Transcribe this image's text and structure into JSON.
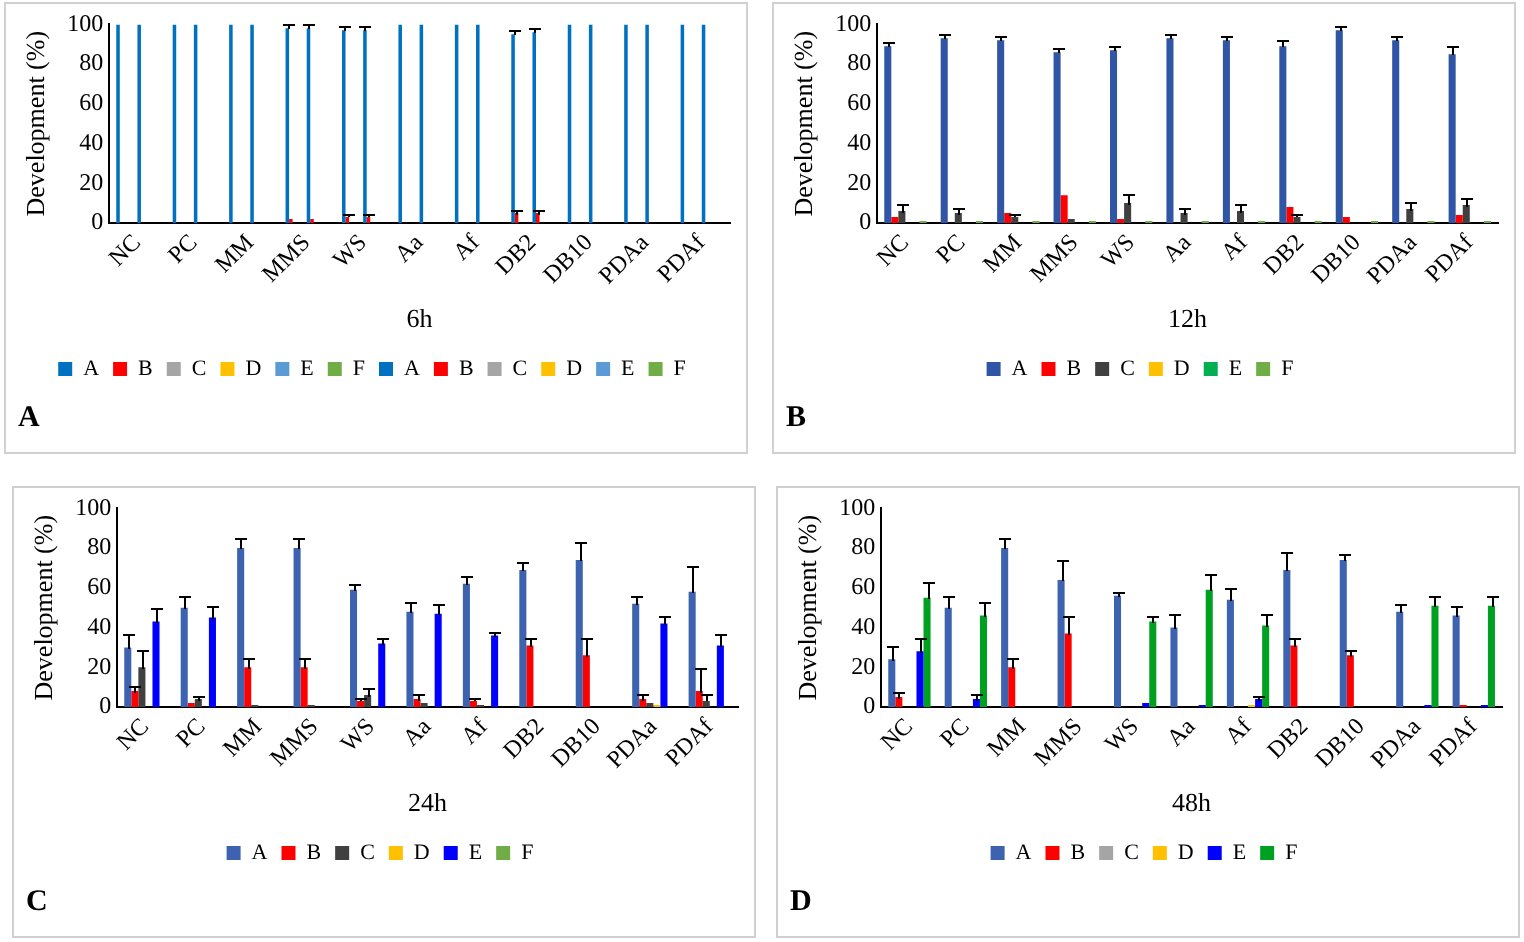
{
  "chart_data": [
    {
      "type": "bar",
      "xlabel": "6h",
      "ylabel": "Development (%)",
      "annotations": [
        "A"
      ],
      "categories": [
        "NC",
        "PC",
        "MM",
        "MMS",
        "WS",
        "Aa",
        "Af",
        "DB2",
        "DB10",
        "PDAa",
        "PDAf"
      ],
      "ylim": [
        0,
        100
      ],
      "yticks": [
        0,
        20,
        40,
        60,
        80,
        100
      ],
      "grid": false,
      "legend": "bottom",
      "series": [
        {
          "name": "A",
          "color": "#0070c0",
          "values": [
            100,
            100,
            100,
            98,
            97,
            100,
            100,
            95,
            100,
            100,
            100
          ],
          "errors": [
            null,
            null,
            null,
            [
              98,
              100
            ],
            [
              97,
              99
            ],
            null,
            null,
            [
              95,
              97
            ],
            null,
            null,
            null
          ]
        },
        {
          "name": "B",
          "color": "#ff0000",
          "values": [
            0,
            0,
            0,
            2,
            3,
            0,
            0,
            5,
            0,
            0,
            0
          ],
          "errors": [
            null,
            null,
            null,
            null,
            [
              3,
              5
            ],
            null,
            null,
            [
              5,
              7
            ],
            null,
            null,
            null
          ]
        },
        {
          "name": "C",
          "color": "#a5a5a5",
          "values": [
            0,
            0,
            0,
            0,
            0,
            0,
            0,
            0,
            0,
            0,
            0
          ]
        },
        {
          "name": "D",
          "color": "#ffc000",
          "values": [
            0,
            0,
            0,
            0,
            0,
            0,
            0,
            0,
            0,
            0,
            0
          ]
        },
        {
          "name": "E",
          "color": "#5b9bd5",
          "values": [
            0,
            0,
            0,
            0,
            0,
            0,
            0,
            0,
            0,
            0,
            0
          ]
        },
        {
          "name": "F",
          "color": "#70ad47",
          "values": [
            0,
            0,
            0,
            0,
            0,
            0,
            0,
            0,
            0,
            0,
            0
          ]
        },
        {
          "name": "A",
          "color": "#0070c0",
          "values": [
            100,
            100,
            100,
            98,
            97,
            100,
            100,
            96,
            100,
            100,
            100
          ],
          "errors": [
            null,
            null,
            null,
            [
              98,
              100
            ],
            [
              97,
              99
            ],
            null,
            null,
            [
              96,
              98
            ],
            null,
            null,
            null
          ]
        },
        {
          "name": "B",
          "color": "#ff0000",
          "values": [
            0,
            0,
            0,
            2,
            3,
            0,
            0,
            5,
            0,
            0,
            0
          ],
          "errors": [
            null,
            null,
            null,
            null,
            [
              3,
              5
            ],
            null,
            null,
            [
              5,
              7
            ],
            null,
            null,
            null
          ]
        },
        {
          "name": "C",
          "color": "#a5a5a5",
          "values": [
            0,
            0,
            0,
            0,
            0,
            0,
            0,
            0,
            0,
            0,
            0
          ]
        },
        {
          "name": "D",
          "color": "#ffc000",
          "values": [
            0,
            0,
            0,
            0,
            0,
            0,
            0,
            0,
            0,
            0,
            0
          ]
        },
        {
          "name": "E",
          "color": "#5b9bd5",
          "values": [
            0,
            0,
            0,
            0,
            0,
            0,
            0,
            0,
            0,
            0,
            0
          ]
        },
        {
          "name": "F",
          "color": "#70ad47",
          "values": [
            0,
            0,
            0,
            0,
            0,
            0,
            0,
            0,
            0,
            0,
            0
          ]
        }
      ]
    },
    {
      "type": "bar",
      "xlabel": "12h",
      "ylabel": "Development (%)",
      "annotations": [
        "B"
      ],
      "categories": [
        "NC",
        "PC",
        "MM",
        "MMS",
        "WS",
        "Aa",
        "Af",
        "DB2",
        "DB10",
        "PDAa",
        "PDAf"
      ],
      "ylim": [
        0,
        100
      ],
      "yticks": [
        0,
        20,
        40,
        60,
        80,
        100
      ],
      "grid": false,
      "legend": "bottom",
      "series": [
        {
          "name": "A",
          "color": "#2f55a4",
          "values": [
            89,
            93,
            92,
            86,
            87,
            93,
            92,
            89,
            97,
            92,
            85
          ],
          "errors": [
            [
              89,
              91
            ],
            [
              93,
              95
            ],
            [
              92,
              94
            ],
            [
              86,
              88
            ],
            [
              87,
              89
            ],
            [
              93,
              95
            ],
            [
              92,
              94
            ],
            [
              89,
              92
            ],
            [
              97,
              99
            ],
            [
              92,
              94
            ],
            [
              85,
              89
            ]
          ]
        },
        {
          "name": "B",
          "color": "#ff0000",
          "values": [
            3,
            0,
            5,
            14,
            2,
            0,
            0,
            8,
            3,
            0,
            4
          ]
        },
        {
          "name": "C",
          "color": "#404040",
          "values": [
            6,
            5,
            3,
            2,
            10,
            5,
            6,
            3,
            0,
            7,
            9
          ],
          "errors": [
            [
              6,
              10
            ],
            [
              5,
              8
            ],
            [
              3,
              5
            ],
            null,
            [
              10,
              15
            ],
            [
              5,
              8
            ],
            [
              6,
              10
            ],
            [
              3,
              5
            ],
            null,
            [
              7,
              11
            ],
            [
              9,
              13
            ]
          ]
        },
        {
          "name": "D",
          "color": "#ffc000",
          "values": [
            0,
            0,
            0,
            0,
            0,
            0,
            0,
            0,
            0,
            0,
            0
          ]
        },
        {
          "name": "E",
          "color": "#00b050",
          "values": [
            0,
            0,
            0,
            0,
            0,
            0,
            0,
            0,
            0,
            0,
            0
          ]
        },
        {
          "name": "F",
          "color": "#70ad47",
          "values": [
            1,
            1,
            1,
            1,
            1,
            1,
            1,
            1,
            1,
            1,
            1
          ]
        }
      ]
    },
    {
      "type": "bar",
      "xlabel": "24h",
      "ylabel": "Development (%)",
      "annotations": [
        "C"
      ],
      "categories": [
        "NC",
        "PC",
        "MM",
        "MMS",
        "WS",
        "Aa",
        "Af",
        "DB2",
        "DB10",
        "PDAa",
        "PDAf"
      ],
      "ylim": [
        0,
        100
      ],
      "yticks": [
        0,
        20,
        40,
        60,
        80,
        100
      ],
      "grid": false,
      "legend": "bottom",
      "series": [
        {
          "name": "A",
          "color": "#3c62b0",
          "values": [
            30,
            50,
            80,
            80,
            59,
            48,
            62,
            69,
            74,
            52,
            58
          ],
          "errors": [
            [
              30,
              37
            ],
            [
              50,
              56
            ],
            [
              80,
              85
            ],
            [
              80,
              85
            ],
            [
              59,
              62
            ],
            [
              48,
              53
            ],
            [
              62,
              66
            ],
            [
              69,
              73
            ],
            [
              74,
              83
            ],
            [
              52,
              56
            ],
            [
              58,
              71
            ]
          ]
        },
        {
          "name": "B",
          "color": "#ff0000",
          "values": [
            8,
            2,
            20,
            20,
            3,
            4,
            3,
            31,
            26,
            4,
            8
          ],
          "errors": [
            [
              8,
              11
            ],
            null,
            [
              20,
              25
            ],
            [
              20,
              25
            ],
            [
              3,
              5
            ],
            [
              4,
              7
            ],
            [
              3,
              5
            ],
            [
              31,
              35
            ],
            [
              26,
              35
            ],
            [
              4,
              7
            ],
            [
              8,
              20
            ]
          ]
        },
        {
          "name": "C",
          "color": "#404040",
          "values": [
            20,
            4,
            1,
            1,
            6,
            2,
            1,
            0,
            0,
            2,
            3
          ],
          "errors": [
            [
              20,
              29
            ],
            [
              4,
              6
            ],
            null,
            null,
            [
              6,
              10
            ],
            null,
            null,
            null,
            null,
            null,
            [
              3,
              7
            ]
          ]
        },
        {
          "name": "D",
          "color": "#ffc000",
          "values": [
            0,
            0,
            0,
            0,
            0,
            0,
            0,
            0,
            0,
            1,
            0
          ]
        },
        {
          "name": "E",
          "color": "#0000ff",
          "values": [
            43,
            45,
            0,
            0,
            32,
            47,
            36,
            0,
            0,
            42,
            31
          ],
          "errors": [
            [
              43,
              50
            ],
            [
              45,
              51
            ],
            null,
            null,
            [
              32,
              35
            ],
            [
              47,
              52
            ],
            [
              36,
              38
            ],
            null,
            null,
            [
              42,
              46
            ],
            [
              31,
              37
            ]
          ]
        },
        {
          "name": "F",
          "color": "#70ad47",
          "values": [
            0,
            0,
            0,
            0,
            0,
            0,
            0,
            0,
            0,
            0,
            0
          ]
        }
      ]
    },
    {
      "type": "bar",
      "xlabel": "48h",
      "ylabel": "Development (%)",
      "annotations": [
        "D"
      ],
      "categories": [
        "NC",
        "PC",
        "MM",
        "MMS",
        "WS",
        "Aa",
        "Af",
        "DB2",
        "DB10",
        "PDAa",
        "PDAf"
      ],
      "ylim": [
        0,
        100
      ],
      "yticks": [
        0,
        20,
        40,
        60,
        80,
        100
      ],
      "grid": false,
      "legend": "bottom",
      "series": [
        {
          "name": "A",
          "color": "#3c62b0",
          "values": [
            24,
            50,
            80,
            64,
            56,
            40,
            54,
            69,
            74,
            48,
            46
          ],
          "errors": [
            [
              24,
              31
            ],
            [
              50,
              56
            ],
            [
              80,
              85
            ],
            [
              64,
              74
            ],
            [
              56,
              58
            ],
            [
              40,
              47
            ],
            [
              54,
              60
            ],
            [
              69,
              78
            ],
            [
              74,
              77
            ],
            [
              48,
              52
            ],
            [
              46,
              51
            ]
          ]
        },
        {
          "name": "B",
          "color": "#ff0000",
          "values": [
            5,
            0,
            20,
            37,
            0,
            0,
            0,
            31,
            26,
            0,
            1
          ],
          "errors": [
            [
              5,
              8
            ],
            null,
            [
              20,
              25
            ],
            [
              37,
              46
            ],
            null,
            null,
            null,
            [
              31,
              35
            ],
            [
              26,
              29
            ],
            null,
            null
          ]
        },
        {
          "name": "C",
          "color": "#a5a5a5",
          "values": [
            0,
            0,
            0,
            0,
            0,
            0,
            0,
            0,
            0,
            0,
            0
          ]
        },
        {
          "name": "D",
          "color": "#ffc000",
          "values": [
            0,
            0,
            0,
            0,
            0,
            0,
            1,
            0,
            0,
            0,
            0
          ]
        },
        {
          "name": "E",
          "color": "#0000ff",
          "values": [
            28,
            4,
            0,
            0,
            2,
            1,
            4,
            0,
            0,
            1,
            1
          ],
          "errors": [
            [
              28,
              35
            ],
            [
              4,
              7
            ],
            null,
            null,
            null,
            null,
            [
              4,
              6
            ],
            null,
            null,
            null,
            null
          ]
        },
        {
          "name": "F",
          "color": "#00a020",
          "values": [
            55,
            46,
            0,
            0,
            43,
            59,
            41,
            0,
            0,
            51,
            51
          ],
          "errors": [
            [
              55,
              63
            ],
            [
              46,
              53
            ],
            null,
            null,
            [
              43,
              46
            ],
            [
              59,
              67
            ],
            [
              41,
              47
            ],
            null,
            null,
            [
              51,
              56
            ],
            [
              51,
              56
            ]
          ]
        }
      ]
    }
  ]
}
